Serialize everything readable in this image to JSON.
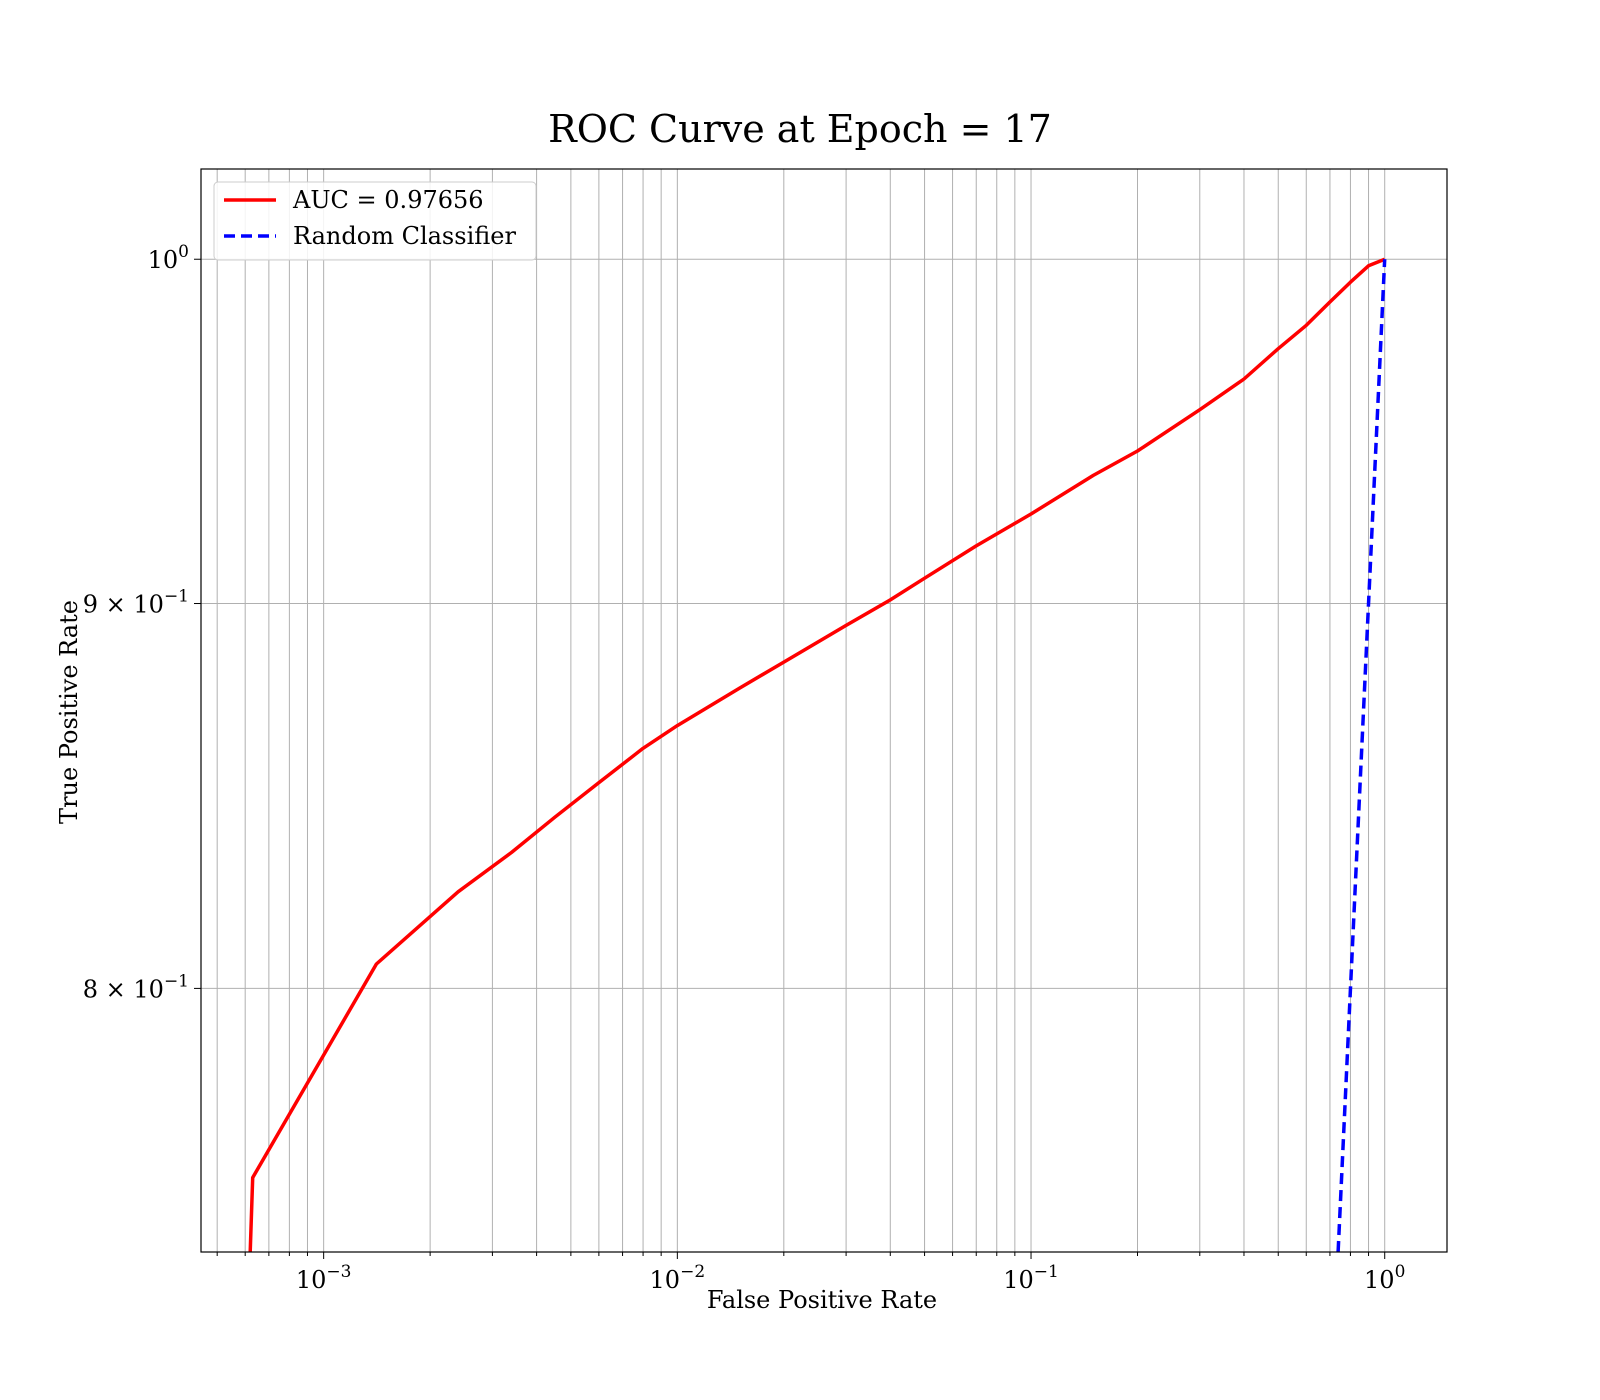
{
  "chart_data": {
    "type": "line",
    "title": "ROC Curve at Epoch = 17",
    "xlabel": "False Positive Rate",
    "ylabel": "True Positive Rate",
    "x_scale": "log",
    "y_scale": "log",
    "xlim": [
      0.00045,
      1.5
    ],
    "ylim": [
      0.738,
      1.028
    ],
    "grid": true,
    "grid_which": "both",
    "legend_location": "upper-left",
    "x_ticks": [
      {
        "value": 0.001,
        "base": "10",
        "exponent": "−3"
      },
      {
        "value": 0.01,
        "base": "10",
        "exponent": "−2"
      },
      {
        "value": 0.1,
        "base": "10",
        "exponent": "−1"
      },
      {
        "value": 1,
        "base": "10",
        "exponent": "0"
      }
    ],
    "y_ticks": [
      {
        "value": 0.8,
        "base": "8 × 10",
        "exponent": "−1"
      },
      {
        "value": 0.9,
        "base": "9 × 10",
        "exponent": "−1"
      },
      {
        "value": 1,
        "base": "10",
        "exponent": "0"
      }
    ],
    "series": [
      {
        "name": "AUC = 0.97656",
        "color": "#ff0000",
        "style": "solid",
        "x": [
          0.00062,
          0.00063,
          0.00141,
          0.0024,
          0.0034,
          0.0045,
          0.006,
          0.008,
          0.01,
          0.015,
          0.02,
          0.03,
          0.04,
          0.05,
          0.07,
          0.1,
          0.15,
          0.2,
          0.3,
          0.4,
          0.5,
          0.6,
          0.7,
          0.8,
          0.9,
          1.0
        ],
        "y": [
          0.738,
          0.755,
          0.806,
          0.824,
          0.834,
          0.843,
          0.852,
          0.861,
          0.867,
          0.877,
          0.884,
          0.894,
          0.901,
          0.907,
          0.916,
          0.925,
          0.936,
          0.943,
          0.955,
          0.964,
          0.973,
          0.98,
          0.987,
          0.993,
          0.998,
          1.0
        ]
      },
      {
        "name": "Random Classifier",
        "color": "#0000ff",
        "style": "dashed",
        "x": [
          0.738,
          1.0
        ],
        "y": [
          0.738,
          1.0
        ]
      }
    ]
  }
}
